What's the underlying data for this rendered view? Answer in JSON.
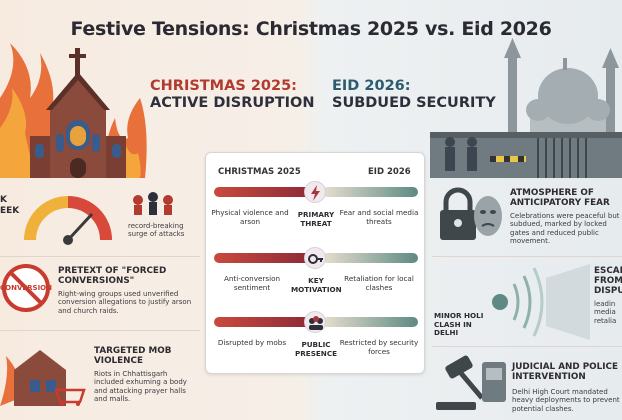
{
  "title": "Festive Tensions: Christmas 2025 vs. Eid 2026",
  "left": {
    "heading_line1": "CHRISTMAS 2025:",
    "heading_line2": "ACTIVE DISRUPTION",
    "stat_fragment_1": "K",
    "stat_fragment_2": "EEK",
    "surge_text": "record-breaking surge of attacks",
    "conversion_sign": "CONVERSION",
    "pretext_title": "PRETEXT OF \"FORCED CONVERSIONS\"",
    "pretext_body": "Right-wing groups used unverified conversion allegations to justify arson and church raids.",
    "mob_title": "TARGETED MOB VIOLENCE",
    "mob_body": "Riots in Chhattisgarh included exhuming a body and attacking prayer halls and malls."
  },
  "right": {
    "heading_line1": "EID 2026:",
    "heading_line2": "SUBDUED SECURITY",
    "fear_title": "ATMOSPHERE OF ANTICIPATORY FEAR",
    "fear_body": "Celebrations were peaceful but subdued, marked by locked gates and reduced public movement.",
    "escal_title": "ESCAL FROM DISPUT",
    "escal_body": "leadin media retalia",
    "holi_label": "MINOR HOLI CLASH IN DELHI",
    "judicial_title": "JUDICIAL AND POLICE INTERVENTION",
    "judicial_body": "Delhi High Court mandated heavy deployments to prevent potential clashes."
  },
  "comparison": {
    "col_left": "CHRISTMAS 2025",
    "col_right": "EID 2026",
    "rows": [
      {
        "left": "Physical violence and arson",
        "middle": "PRIMARY THREAT",
        "right": "Fear and social media threats"
      },
      {
        "left": "Anti-conversion sentiment",
        "middle": "KEY MOTIVATION",
        "right": "Retaliation for local clashes"
      },
      {
        "left": "Disrupted by mobs",
        "middle": "PUBLIC PRESENCE",
        "right": "Restricted by security forces"
      }
    ]
  },
  "colors": {
    "christmas": "#a8363a",
    "eid": "#5d8a84",
    "accent_red": "#b23a2f",
    "accent_teal": "#2c5d6e"
  }
}
